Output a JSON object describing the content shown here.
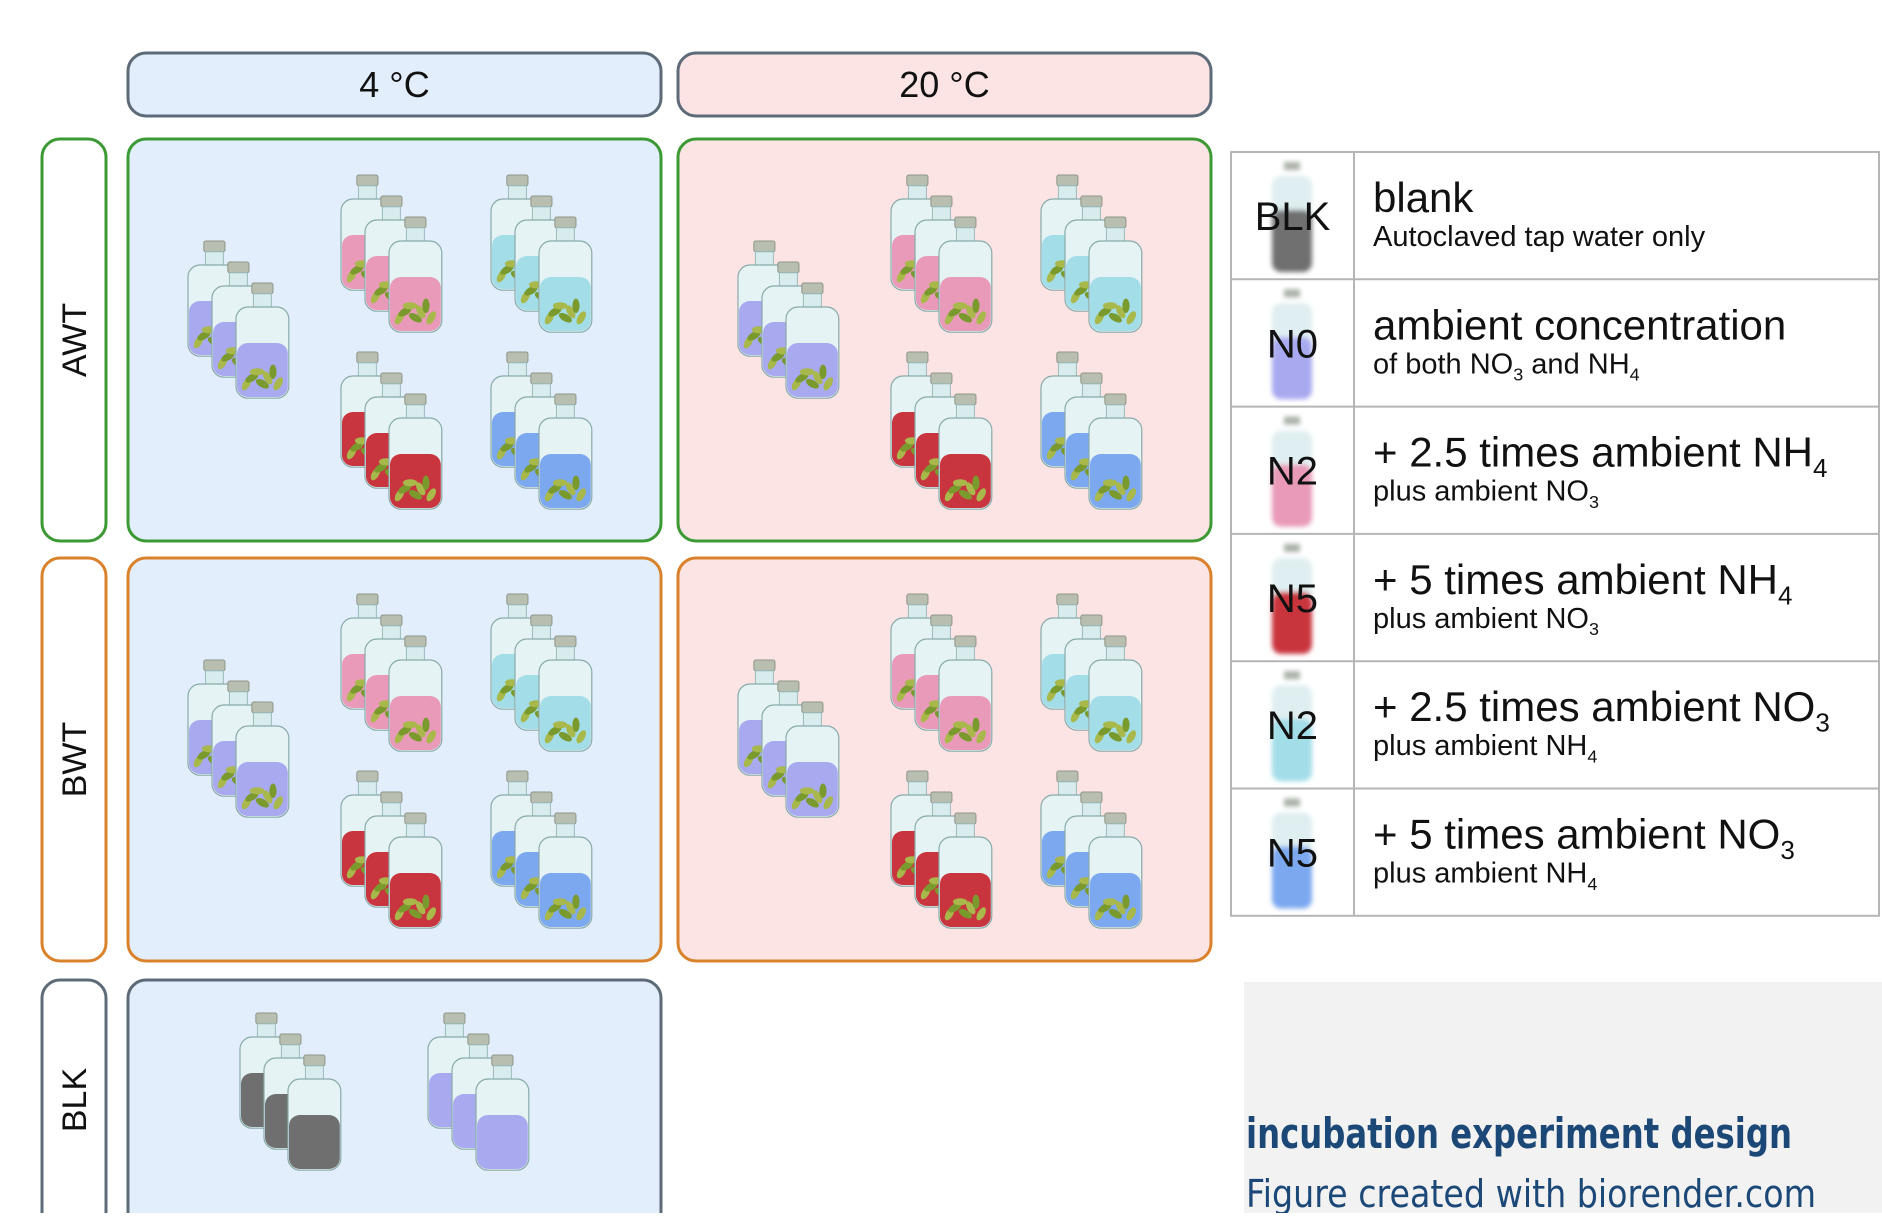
{
  "columns": [
    "4 °C",
    "20 °C"
  ],
  "rows": [
    "AWT",
    "BWT",
    "BLK"
  ],
  "legend": [
    {
      "code": "BLK",
      "title": [
        "blank"
      ],
      "subtitle": [
        "Autoclaved tap water only"
      ]
    },
    {
      "code": "N0",
      "title": [
        "ambient concentration"
      ],
      "subtitle": [
        "of both NO",
        "3",
        " and NH",
        "4"
      ]
    },
    {
      "code": "N2",
      "title": [
        "+ 2.5 times ambient NH",
        "4"
      ],
      "subtitle": [
        "plus ambient NO",
        "3"
      ]
    },
    {
      "code": "N5",
      "title": [
        "+ 5 times ambient NH",
        "4"
      ],
      "subtitle": [
        "plus ambient NO",
        "3"
      ]
    },
    {
      "code": "N2",
      "title": [
        "+ 2.5 times ambient NO",
        "3"
      ],
      "subtitle": [
        "plus ambient NH",
        "4"
      ]
    },
    {
      "code": "N5",
      "title": [
        "+ 5 times ambient NO",
        "3"
      ],
      "subtitle": [
        "plus ambient NH",
        "4"
      ]
    }
  ],
  "caption": {
    "title": "incubation experiment design",
    "credit": "Figure created with biorender.com"
  }
}
